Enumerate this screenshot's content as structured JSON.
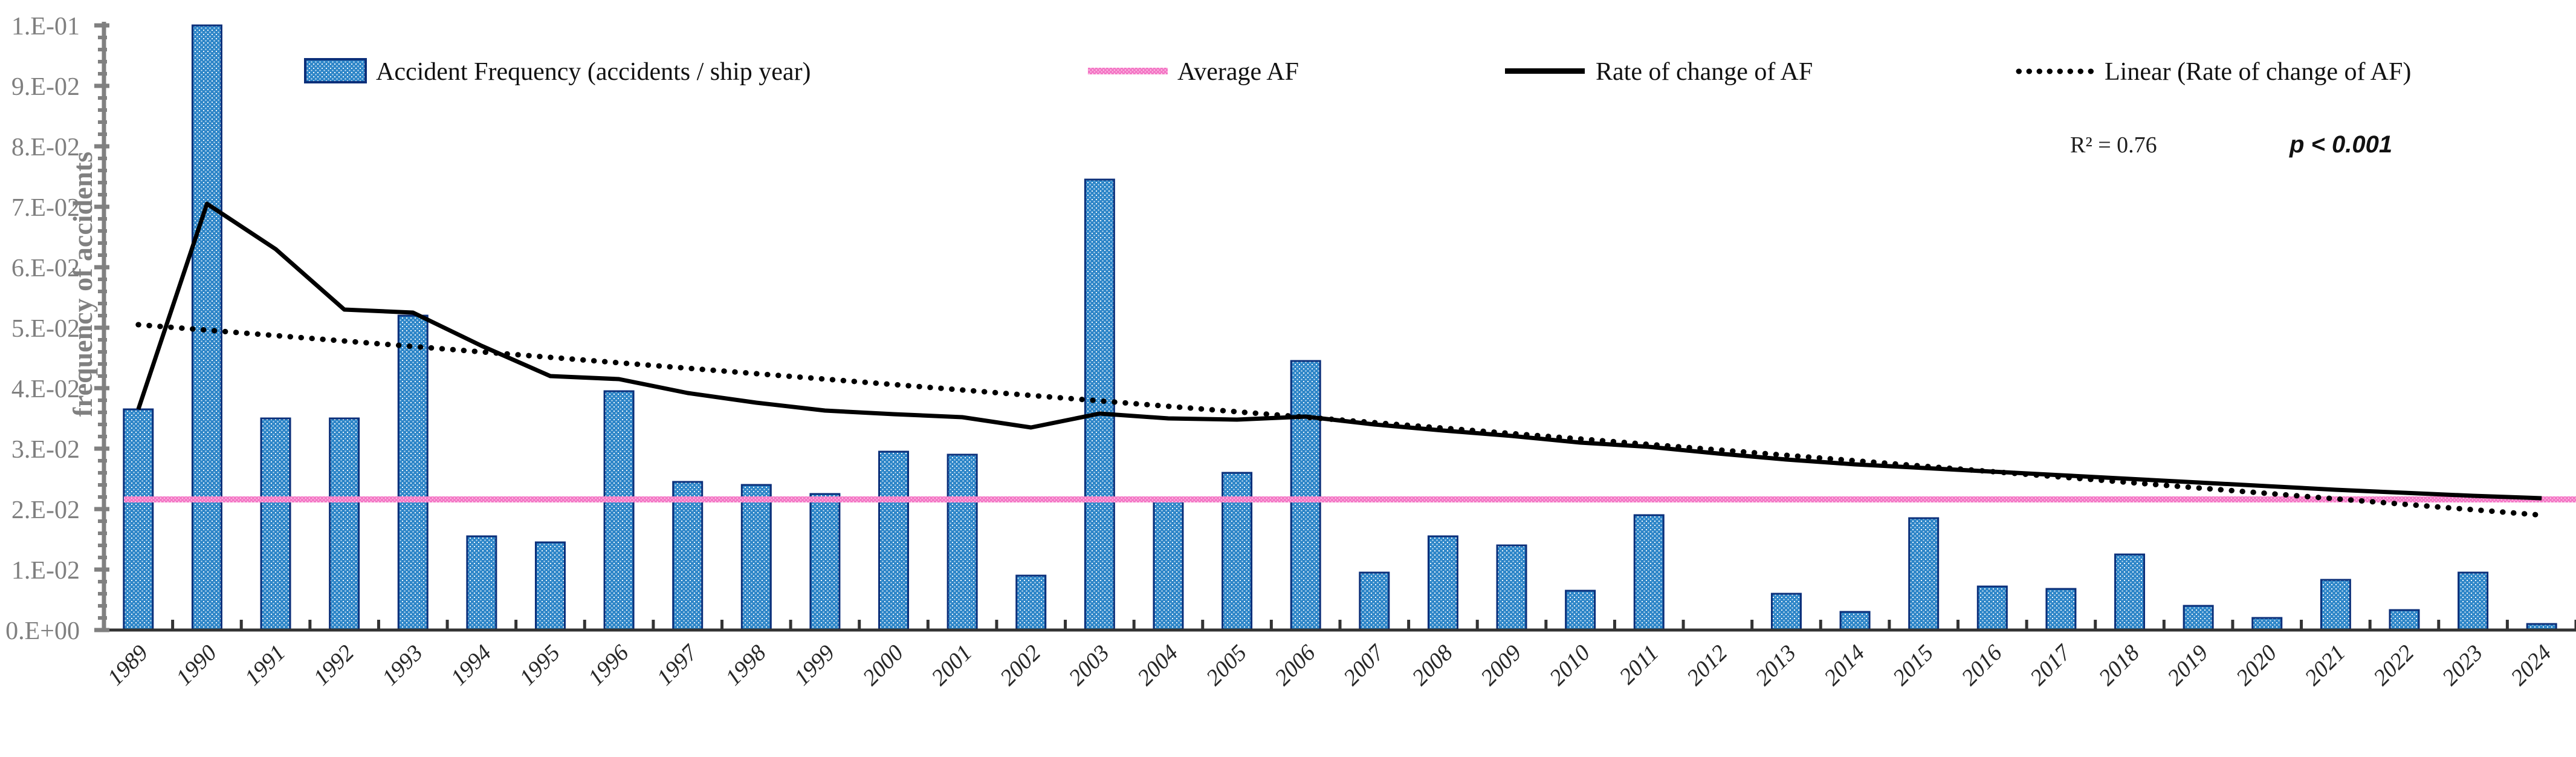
{
  "chart_data": {
    "type": "bar+line",
    "title": "",
    "ylabel": "frequency of accidents",
    "xlabel": "",
    "grid": false,
    "legend_position": "top",
    "y_axis": {
      "min": 0,
      "max": 0.1,
      "major_step": 0.01,
      "minor_step": 0.002,
      "tick_labels": [
        "0.E+00",
        "1.E-02",
        "2.E-02",
        "3.E-02",
        "4.E-02",
        "5.E-02",
        "6.E-02",
        "7.E-02",
        "8.E-02",
        "9.E-02",
        "1.E-01"
      ]
    },
    "categories": [
      "1989",
      "1990",
      "1991",
      "1992",
      "1993",
      "1994",
      "1995",
      "1996",
      "1997",
      "1998",
      "1999",
      "2000",
      "2001",
      "2002",
      "2003",
      "2004",
      "2005",
      "2006",
      "2007",
      "2008",
      "2009",
      "2010",
      "2011",
      "2012",
      "2013",
      "2014",
      "2015",
      "2016",
      "2017",
      "2018",
      "2019",
      "2020",
      "2021",
      "2022",
      "2023",
      "2024"
    ],
    "series": [
      {
        "name": "Accident Frequency (accidents / ship year)",
        "type": "bar",
        "color": "#2E86C8",
        "border": "#0B2F7A",
        "values": [
          0.0365,
          0.1,
          0.035,
          0.035,
          0.052,
          0.0155,
          0.0145,
          0.0395,
          0.0245,
          0.024,
          0.0225,
          0.0295,
          0.029,
          0.009,
          0.0745,
          0.0215,
          0.026,
          0.0445,
          0.0095,
          0.0155,
          0.014,
          0.0065,
          0.019,
          0,
          0.006,
          0.003,
          0.0185,
          0.0072,
          0.0068,
          0.0125,
          0.004,
          0.002,
          0.0083,
          0.0033,
          0.0095,
          0.001
        ]
      },
      {
        "name": "Average AF",
        "type": "hline",
        "color": "#F478C6",
        "value": 0.0216
      },
      {
        "name": "Rate of change of AF",
        "type": "line",
        "color": "#000000",
        "values": [
          0.0365,
          0.0705,
          0.063,
          0.053,
          0.0525,
          0.047,
          0.042,
          0.0415,
          0.0392,
          0.0376,
          0.0363,
          0.0357,
          0.0352,
          0.0335,
          0.0358,
          0.035,
          0.0348,
          0.0353,
          0.034,
          0.033,
          0.0321,
          0.031,
          0.0303,
          0.0292,
          0.0282,
          0.0274,
          0.0268,
          0.0262,
          0.0256,
          0.025,
          0.0244,
          0.0238,
          0.0232,
          0.0227,
          0.0222,
          0.0218
        ]
      },
      {
        "name": "Linear (Rate of change of AF)",
        "type": "trend",
        "style": "dotted",
        "color": "#000000",
        "start_value": 0.0505,
        "end_value": 0.019
      }
    ],
    "annotations": {
      "r_squared": "R² = 0.76",
      "p_value": "p < 0.001"
    }
  }
}
